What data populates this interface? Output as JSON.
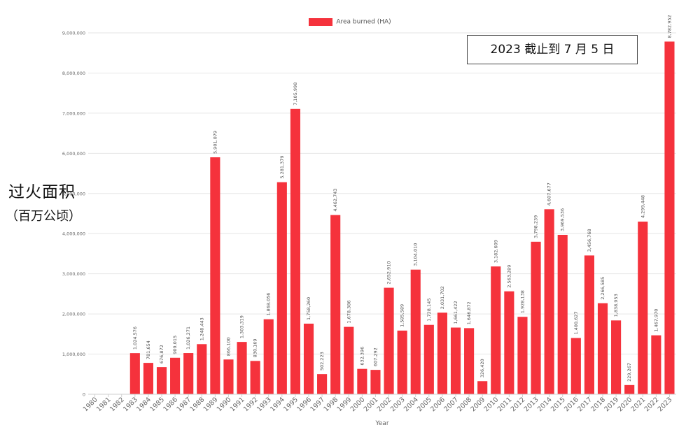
{
  "page": {
    "y_axis_label_line1": "过火面积",
    "y_axis_label_line2": "（百万公顷）",
    "annotation": "2023 截止到 7 月 5 日"
  },
  "chart_data": {
    "type": "bar",
    "title": "",
    "xlabel": "Year",
    "ylabel": "过火面积（百万公顷）",
    "legend": {
      "position": "top-center",
      "entries": [
        "Area burned (HA)"
      ]
    },
    "grid": true,
    "color": "#f5323c",
    "ylim": [
      0,
      9000000
    ],
    "yticks": [
      0,
      1000000,
      2000000,
      3000000,
      4000000,
      5000000,
      6000000,
      7000000,
      8000000,
      9000000
    ],
    "ytick_labels": [
      "0",
      "1,000,000",
      "2,000,000",
      "3,000,000",
      "4,000,000",
      "5,000,000",
      "6,000,000",
      "7,000,000",
      "8,000,000",
      "9,000,000"
    ],
    "categories": [
      "1980",
      "1981",
      "1982",
      "1983",
      "1984",
      "1985",
      "1986",
      "1987",
      "1988",
      "1989",
      "1990",
      "1991",
      "1992",
      "1993",
      "1994",
      "1995",
      "1996",
      "1997",
      "1998",
      "1999",
      "2000",
      "2001",
      "2002",
      "2003",
      "2004",
      "2005",
      "2006",
      "2007",
      "2008",
      "2009",
      "2010",
      "2011",
      "2012",
      "2013",
      "2014",
      "2015",
      "2016",
      "2017",
      "2018",
      "2019",
      "2020",
      "2021",
      "2022",
      "2023"
    ],
    "series": [
      {
        "name": "Area burned (HA)",
        "values": [
          null,
          null,
          null,
          1024576,
          781654,
          676872,
          909015,
          1026271,
          1248443,
          5901079,
          866100,
          1303319,
          830169,
          1868056,
          5281379,
          7105998,
          1758260,
          502223,
          4462743,
          1678386,
          632396,
          607292,
          2652910,
          1585589,
          3104010,
          1728145,
          2031702,
          1661422,
          1646872,
          326420,
          3182609,
          2563289,
          1928138,
          3798239,
          4607677,
          3969536,
          1400627,
          3456768,
          2266585,
          1838953,
          229267,
          4299448,
          1467970,
          8782952
        ],
        "labels": [
          "",
          "",
          "",
          "1,024,576",
          "781,654",
          "676,872",
          "909,015",
          "1,026,271",
          "1,248,443",
          "5,901,079",
          "866,100",
          "1,303,319",
          "830,169",
          "1,868,056",
          "5,281,379",
          "7,105,998",
          "1,758,260",
          "502,223",
          "4,462,743",
          "1,678,386",
          "632,396",
          "607,292",
          "2,652,910",
          "1,585,589",
          "3,104,010",
          "1,728,145",
          "2,031,702",
          "1,661,422",
          "1,646,872",
          "326,420",
          "3,182,609",
          "2,563,289",
          "1,928,138",
          "3,798,239",
          "4,607,677",
          "3,969,536",
          "1,400,627",
          "3,456,768",
          "2,266,585",
          "1,838,953",
          "229,267",
          "4,299,448",
          "1,467,970",
          "8,782,952"
        ]
      }
    ]
  }
}
